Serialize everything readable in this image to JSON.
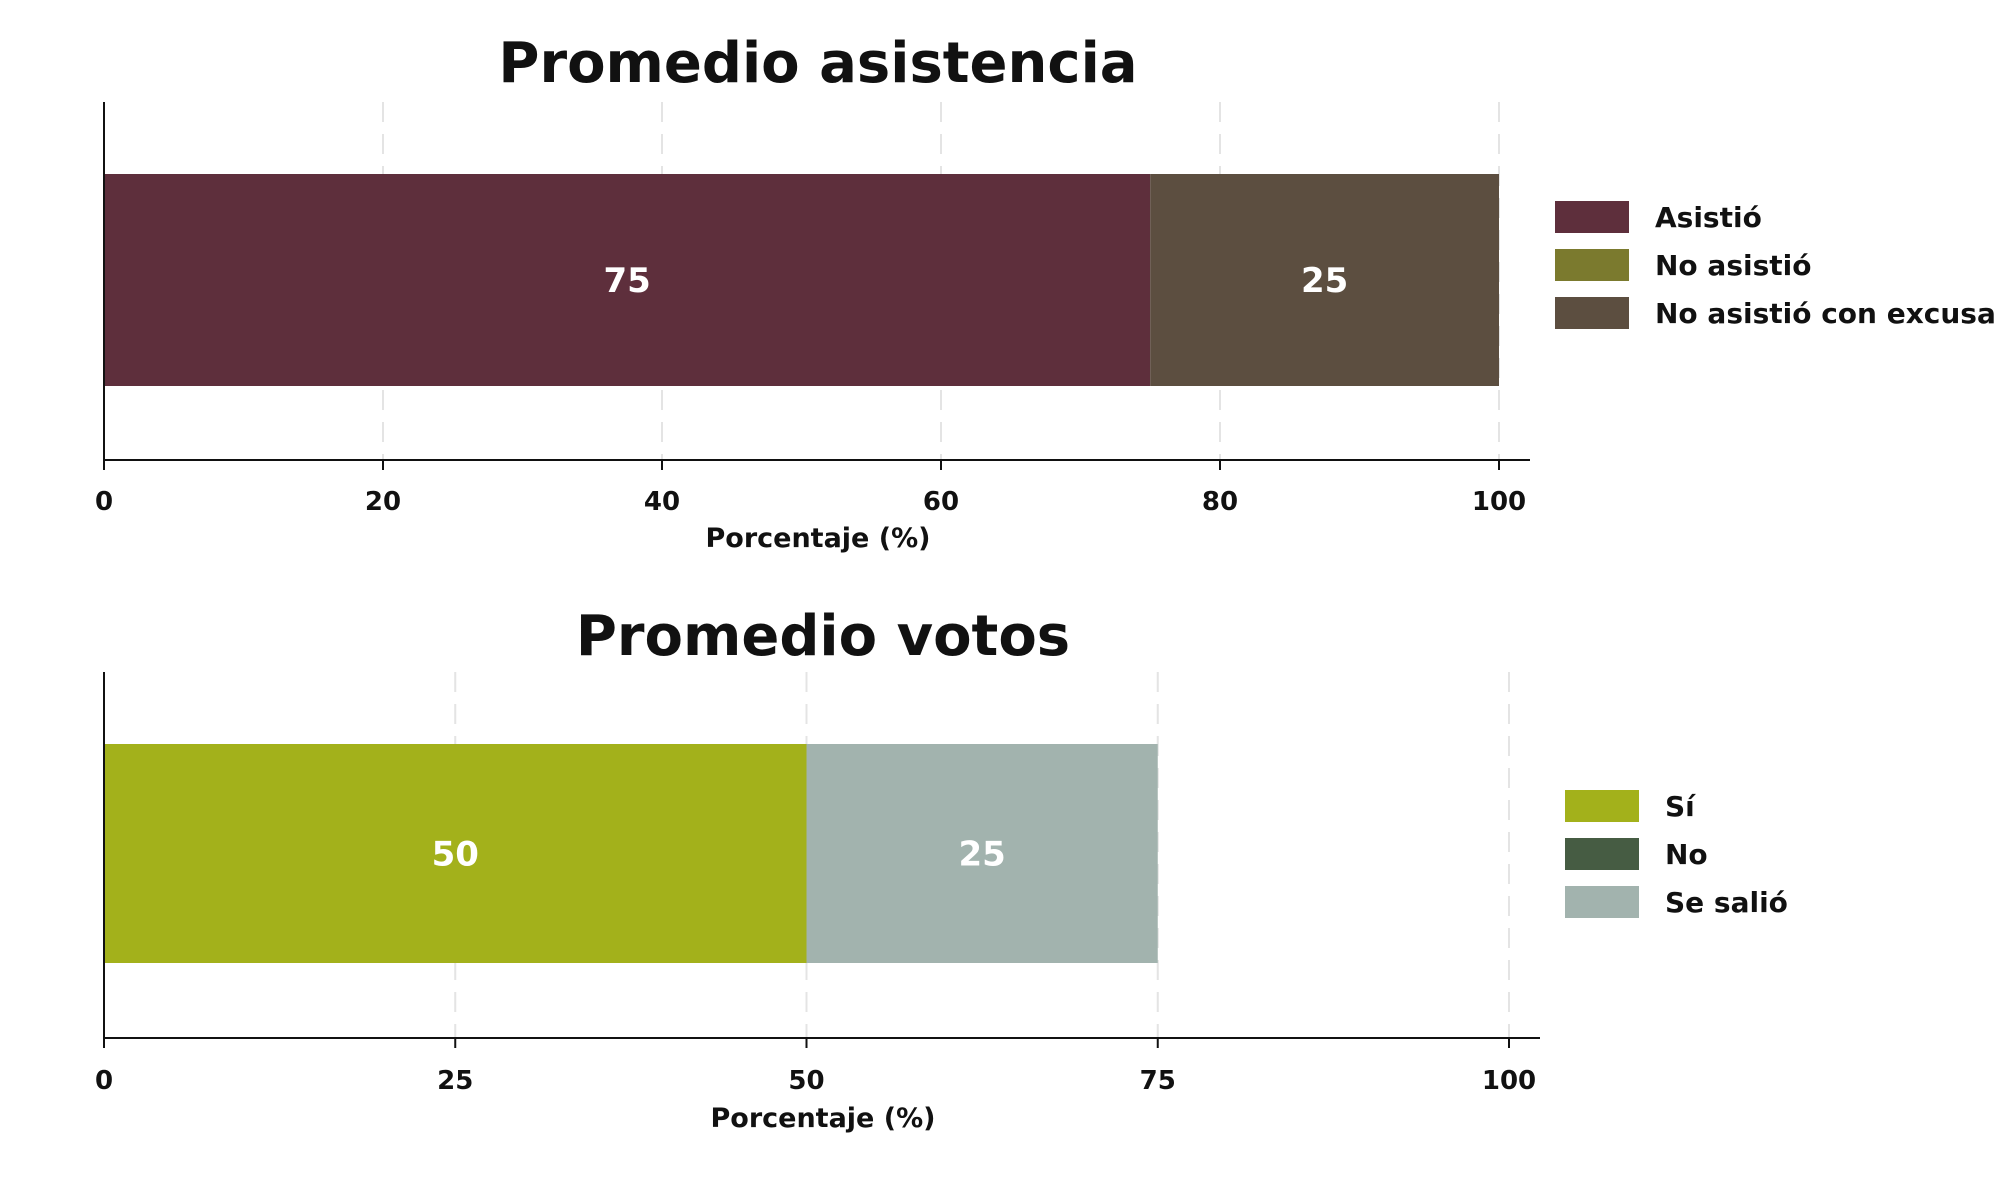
{
  "chart_data": [
    {
      "type": "bar",
      "orientation": "horizontal",
      "stacked": true,
      "title": "Promedio asistencia",
      "xlabel": "Porcentaje (%)",
      "xlim": [
        0,
        100
      ],
      "xticks": [
        0,
        20,
        40,
        60,
        80,
        100
      ],
      "grid": true,
      "legend_position": "right",
      "series": [
        {
          "name": "Asistió",
          "value": 75,
          "color": "#5e2f3c"
        },
        {
          "name": "No asistió",
          "value": 0,
          "color": "#7b7a2e"
        },
        {
          "name": "No asistió con excusa",
          "value": 25,
          "color": "#5c4e40"
        }
      ]
    },
    {
      "type": "bar",
      "orientation": "horizontal",
      "stacked": true,
      "title": "Promedio votos",
      "xlabel": "Porcentaje (%)",
      "xlim": [
        0,
        100
      ],
      "xticks": [
        0,
        25,
        50,
        75,
        100
      ],
      "grid": true,
      "legend_position": "right",
      "series": [
        {
          "name": "Sí",
          "value": 50,
          "color": "#a3b11b"
        },
        {
          "name": "No",
          "value": 0,
          "color": "#465c43"
        },
        {
          "name": "Se salió",
          "value": 25,
          "color": "#a2b3ae"
        }
      ]
    }
  ]
}
